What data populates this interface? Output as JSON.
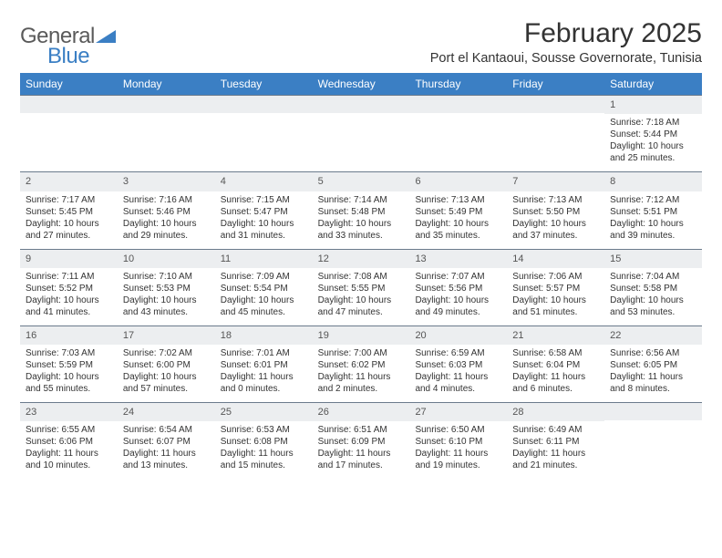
{
  "brand": {
    "word1": "General",
    "word2": "Blue",
    "word1_color": "#5a5a5a",
    "word2_color": "#3b7fc4",
    "triangle_color": "#3b7fc4"
  },
  "title": {
    "month_year": "February 2025",
    "location": "Port el Kantaoui, Sousse Governorate, Tunisia"
  },
  "colors": {
    "header_bg": "#3b7fc4",
    "header_text": "#ffffff",
    "daynum_bg": "#eceef0",
    "border": "#6b7b8c",
    "body_text": "#333333"
  },
  "weekdays": [
    "Sunday",
    "Monday",
    "Tuesday",
    "Wednesday",
    "Thursday",
    "Friday",
    "Saturday"
  ],
  "layout": {
    "columns": 7,
    "first_day_column_index": 6,
    "days_in_month": 28
  },
  "weeks": [
    [
      {
        "blank": true
      },
      {
        "blank": true
      },
      {
        "blank": true
      },
      {
        "blank": true
      },
      {
        "blank": true
      },
      {
        "blank": true
      },
      {
        "num": "1",
        "sunrise": "Sunrise: 7:18 AM",
        "sunset": "Sunset: 5:44 PM",
        "daylight": "Daylight: 10 hours and 25 minutes."
      }
    ],
    [
      {
        "num": "2",
        "sunrise": "Sunrise: 7:17 AM",
        "sunset": "Sunset: 5:45 PM",
        "daylight": "Daylight: 10 hours and 27 minutes."
      },
      {
        "num": "3",
        "sunrise": "Sunrise: 7:16 AM",
        "sunset": "Sunset: 5:46 PM",
        "daylight": "Daylight: 10 hours and 29 minutes."
      },
      {
        "num": "4",
        "sunrise": "Sunrise: 7:15 AM",
        "sunset": "Sunset: 5:47 PM",
        "daylight": "Daylight: 10 hours and 31 minutes."
      },
      {
        "num": "5",
        "sunrise": "Sunrise: 7:14 AM",
        "sunset": "Sunset: 5:48 PM",
        "daylight": "Daylight: 10 hours and 33 minutes."
      },
      {
        "num": "6",
        "sunrise": "Sunrise: 7:13 AM",
        "sunset": "Sunset: 5:49 PM",
        "daylight": "Daylight: 10 hours and 35 minutes."
      },
      {
        "num": "7",
        "sunrise": "Sunrise: 7:13 AM",
        "sunset": "Sunset: 5:50 PM",
        "daylight": "Daylight: 10 hours and 37 minutes."
      },
      {
        "num": "8",
        "sunrise": "Sunrise: 7:12 AM",
        "sunset": "Sunset: 5:51 PM",
        "daylight": "Daylight: 10 hours and 39 minutes."
      }
    ],
    [
      {
        "num": "9",
        "sunrise": "Sunrise: 7:11 AM",
        "sunset": "Sunset: 5:52 PM",
        "daylight": "Daylight: 10 hours and 41 minutes."
      },
      {
        "num": "10",
        "sunrise": "Sunrise: 7:10 AM",
        "sunset": "Sunset: 5:53 PM",
        "daylight": "Daylight: 10 hours and 43 minutes."
      },
      {
        "num": "11",
        "sunrise": "Sunrise: 7:09 AM",
        "sunset": "Sunset: 5:54 PM",
        "daylight": "Daylight: 10 hours and 45 minutes."
      },
      {
        "num": "12",
        "sunrise": "Sunrise: 7:08 AM",
        "sunset": "Sunset: 5:55 PM",
        "daylight": "Daylight: 10 hours and 47 minutes."
      },
      {
        "num": "13",
        "sunrise": "Sunrise: 7:07 AM",
        "sunset": "Sunset: 5:56 PM",
        "daylight": "Daylight: 10 hours and 49 minutes."
      },
      {
        "num": "14",
        "sunrise": "Sunrise: 7:06 AM",
        "sunset": "Sunset: 5:57 PM",
        "daylight": "Daylight: 10 hours and 51 minutes."
      },
      {
        "num": "15",
        "sunrise": "Sunrise: 7:04 AM",
        "sunset": "Sunset: 5:58 PM",
        "daylight": "Daylight: 10 hours and 53 minutes."
      }
    ],
    [
      {
        "num": "16",
        "sunrise": "Sunrise: 7:03 AM",
        "sunset": "Sunset: 5:59 PM",
        "daylight": "Daylight: 10 hours and 55 minutes."
      },
      {
        "num": "17",
        "sunrise": "Sunrise: 7:02 AM",
        "sunset": "Sunset: 6:00 PM",
        "daylight": "Daylight: 10 hours and 57 minutes."
      },
      {
        "num": "18",
        "sunrise": "Sunrise: 7:01 AM",
        "sunset": "Sunset: 6:01 PM",
        "daylight": "Daylight: 11 hours and 0 minutes."
      },
      {
        "num": "19",
        "sunrise": "Sunrise: 7:00 AM",
        "sunset": "Sunset: 6:02 PM",
        "daylight": "Daylight: 11 hours and 2 minutes."
      },
      {
        "num": "20",
        "sunrise": "Sunrise: 6:59 AM",
        "sunset": "Sunset: 6:03 PM",
        "daylight": "Daylight: 11 hours and 4 minutes."
      },
      {
        "num": "21",
        "sunrise": "Sunrise: 6:58 AM",
        "sunset": "Sunset: 6:04 PM",
        "daylight": "Daylight: 11 hours and 6 minutes."
      },
      {
        "num": "22",
        "sunrise": "Sunrise: 6:56 AM",
        "sunset": "Sunset: 6:05 PM",
        "daylight": "Daylight: 11 hours and 8 minutes."
      }
    ],
    [
      {
        "num": "23",
        "sunrise": "Sunrise: 6:55 AM",
        "sunset": "Sunset: 6:06 PM",
        "daylight": "Daylight: 11 hours and 10 minutes."
      },
      {
        "num": "24",
        "sunrise": "Sunrise: 6:54 AM",
        "sunset": "Sunset: 6:07 PM",
        "daylight": "Daylight: 11 hours and 13 minutes."
      },
      {
        "num": "25",
        "sunrise": "Sunrise: 6:53 AM",
        "sunset": "Sunset: 6:08 PM",
        "daylight": "Daylight: 11 hours and 15 minutes."
      },
      {
        "num": "26",
        "sunrise": "Sunrise: 6:51 AM",
        "sunset": "Sunset: 6:09 PM",
        "daylight": "Daylight: 11 hours and 17 minutes."
      },
      {
        "num": "27",
        "sunrise": "Sunrise: 6:50 AM",
        "sunset": "Sunset: 6:10 PM",
        "daylight": "Daylight: 11 hours and 19 minutes."
      },
      {
        "num": "28",
        "sunrise": "Sunrise: 6:49 AM",
        "sunset": "Sunset: 6:11 PM",
        "daylight": "Daylight: 11 hours and 21 minutes."
      },
      {
        "blank": true
      }
    ]
  ]
}
